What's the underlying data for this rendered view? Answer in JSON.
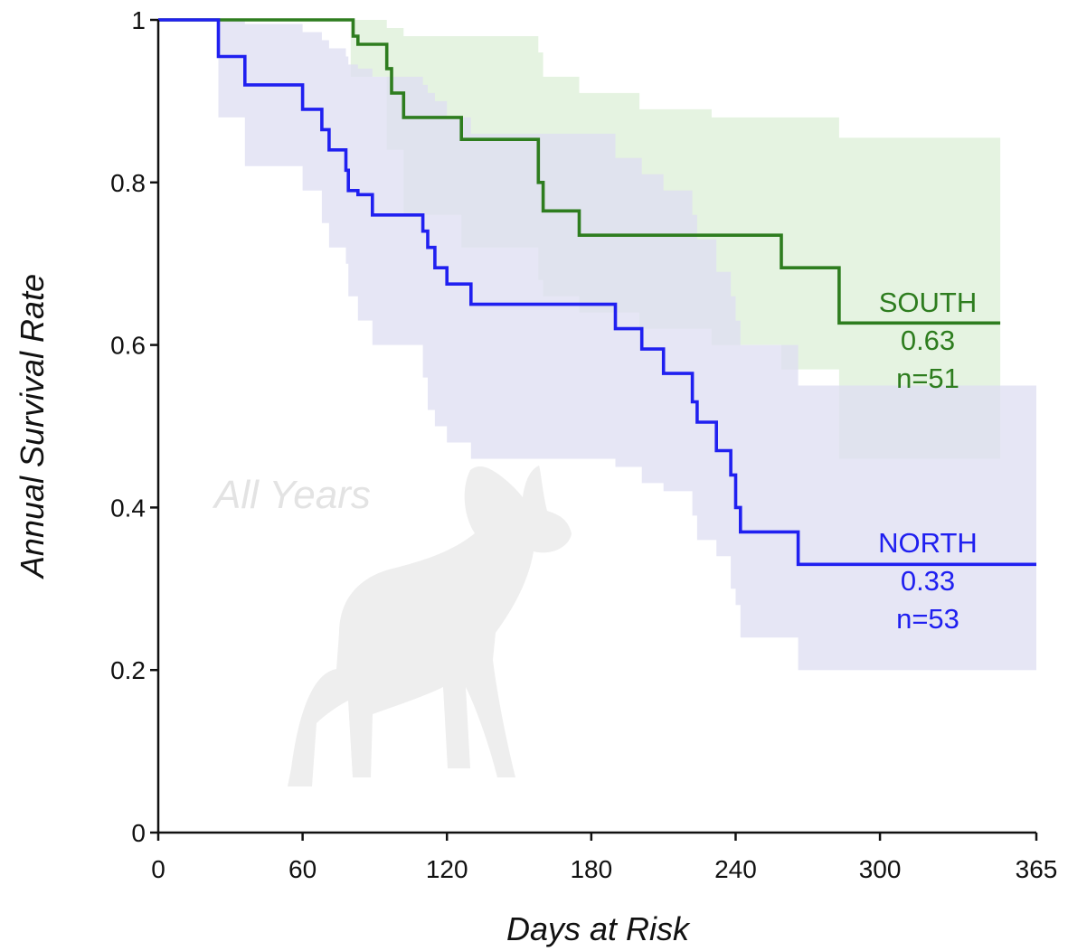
{
  "chart_data": {
    "type": "line",
    "step": true,
    "title": "",
    "watermark_text": "All Years",
    "watermark_icon": "moose-calf-silhouette-icon",
    "xlabel": "Days at Risk",
    "ylabel": "Annual Survival Rate",
    "xlim": [
      0,
      365
    ],
    "ylim": [
      0,
      1
    ],
    "xticks": [
      0,
      60,
      120,
      180,
      240,
      300,
      365
    ],
    "yticks": [
      0,
      0.2,
      0.4,
      0.6,
      0.8,
      1
    ],
    "ytick_labels": [
      "0",
      "0.2",
      "0.4",
      "0.6",
      "0.8",
      "1"
    ],
    "grid": false,
    "legend": "none",
    "series": [
      {
        "name": "SOUTH",
        "estimate_label": "0.63",
        "n_label": "n=51",
        "color": "#2e7d1f",
        "band_color": "#cfe9c8",
        "x": [
          0,
          80,
          81,
          83,
          95,
          97,
          102,
          126,
          158,
          160,
          175,
          259,
          283,
          350
        ],
        "y": [
          1.0,
          1.0,
          0.98,
          0.97,
          0.94,
          0.91,
          0.88,
          0.853,
          0.8,
          0.765,
          0.735,
          0.695,
          0.627,
          0.627
        ],
        "band_x": [
          0,
          65,
          80,
          95,
          102,
          126,
          158,
          160,
          175,
          200,
          230,
          259,
          283,
          300,
          350
        ],
        "band_upper": [
          1.0,
          1.0,
          1.0,
          0.99,
          0.98,
          0.98,
          0.96,
          0.93,
          0.91,
          0.89,
          0.88,
          0.88,
          0.855,
          0.855,
          0.855
        ],
        "band_lower": [
          1.0,
          1.0,
          0.93,
          0.84,
          0.76,
          0.72,
          0.68,
          0.66,
          0.64,
          0.62,
          0.6,
          0.57,
          0.46,
          0.46,
          0.46
        ]
      },
      {
        "name": "NORTH",
        "estimate_label": "0.33",
        "n_label": "n=53",
        "color": "#2020f0",
        "band_color": "#dedef2",
        "x": [
          0,
          25,
          36,
          60,
          68,
          71,
          78,
          79,
          83,
          89,
          110,
          112,
          115,
          120,
          130,
          190,
          201,
          210,
          222,
          224,
          232,
          238,
          240,
          242,
          266,
          365
        ],
        "y": [
          1.0,
          0.955,
          0.92,
          0.89,
          0.865,
          0.84,
          0.815,
          0.79,
          0.785,
          0.76,
          0.74,
          0.72,
          0.695,
          0.675,
          0.65,
          0.62,
          0.595,
          0.565,
          0.53,
          0.505,
          0.47,
          0.44,
          0.4,
          0.37,
          0.33,
          0.33
        ],
        "band_x": [
          0,
          25,
          36,
          60,
          68,
          71,
          78,
          79,
          83,
          89,
          110,
          112,
          115,
          120,
          130,
          190,
          201,
          210,
          222,
          224,
          232,
          238,
          240,
          242,
          266,
          365
        ],
        "band_upper": [
          1.0,
          1.0,
          0.995,
          0.985,
          0.975,
          0.965,
          0.955,
          0.945,
          0.94,
          0.93,
          0.92,
          0.91,
          0.9,
          0.88,
          0.86,
          0.83,
          0.81,
          0.79,
          0.76,
          0.73,
          0.69,
          0.66,
          0.63,
          0.6,
          0.55,
          0.55
        ],
        "band_lower": [
          1.0,
          0.88,
          0.82,
          0.79,
          0.75,
          0.72,
          0.7,
          0.66,
          0.63,
          0.6,
          0.56,
          0.52,
          0.5,
          0.48,
          0.46,
          0.45,
          0.43,
          0.42,
          0.39,
          0.36,
          0.34,
          0.3,
          0.28,
          0.24,
          0.2,
          0.2
        ]
      }
    ]
  }
}
